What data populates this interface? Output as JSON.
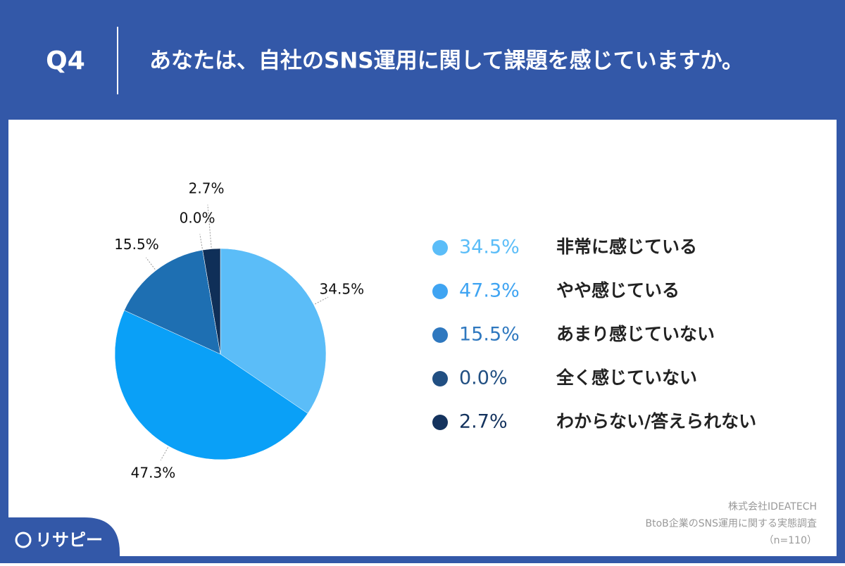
{
  "header": {
    "number": "Q4"
  },
  "chart_data": {
    "type": "pie",
    "title": "あなたは、自社のSNS運用に関して課題を感じていますか。",
    "categories": [
      "非常に感じている",
      "やや感じている",
      "あまり感じていない",
      "全く感じていない",
      "わからない/答えられない"
    ],
    "values": [
      34.5,
      47.3,
      15.5,
      0.0,
      2.7
    ],
    "value_labels": [
      "34.5%",
      "47.3%",
      "15.5%",
      "0.0%",
      "2.7%"
    ],
    "colors": [
      "#5bbdf8",
      "#0aa0f7",
      "#1e6fb2",
      "#1d4f82",
      "#0f2f58"
    ],
    "legend_colors": [
      "#5bbdf8",
      "#3fa4f2",
      "#2f78bf",
      "#214f82",
      "#14335e"
    ]
  },
  "footer": {
    "source": [
      "株式会社IDEATECH",
      "BtoB企業のSNS運用に関する実態調査",
      "（n=110）"
    ],
    "brand": "リサピー"
  }
}
